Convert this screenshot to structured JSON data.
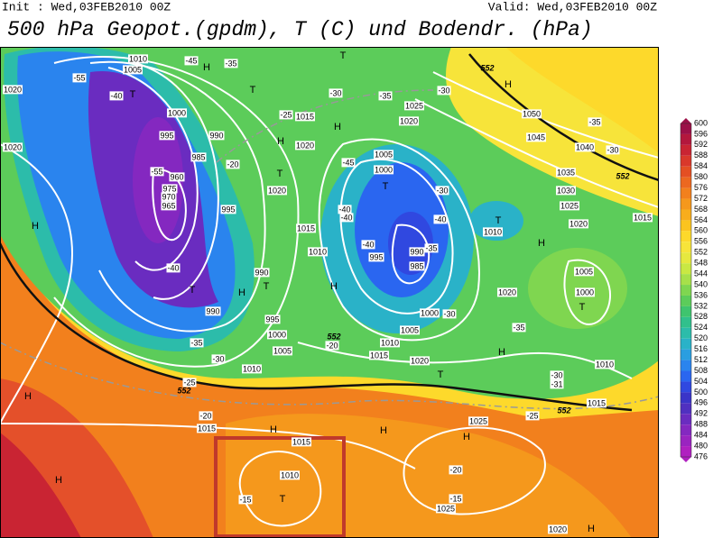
{
  "header": {
    "init": "Init : Wed,03FEB2010 00Z",
    "valid": "Valid: Wed,03FEB2010 00Z",
    "title": "500 hPa Geopot.(gpdm), T (C) und Bodendr. (hPa)"
  },
  "map": {
    "pressure_labels": [
      "1010",
      "1005",
      "1020",
      "1000",
      "995",
      "990",
      "985",
      "960",
      "975",
      "970",
      "965",
      "995",
      "1020",
      "1015",
      "1020",
      "1020",
      "1015",
      "1010",
      "990",
      "990",
      "995",
      "1000",
      "1005",
      "1010",
      "1015",
      "1025",
      "1020",
      "1005",
      "1000",
      "990",
      "985",
      "995",
      "1000",
      "1005",
      "1010",
      "1015",
      "1020",
      "1020",
      "1010",
      "1050",
      "1045",
      "1040",
      "1035",
      "1030",
      "1025",
      "1020",
      "1015",
      "1005",
      "1000",
      "1010",
      "1015",
      "1025",
      "1025",
      "1015",
      "1010",
      "1020"
    ],
    "temperature_labels": [
      "-55",
      "-40",
      "-45",
      "-35",
      "-30",
      "-35",
      "-30",
      "-25",
      "-20",
      "-55",
      "-45",
      "-40",
      "-40",
      "-30",
      "-40",
      "-40",
      "-35",
      "-40",
      "-35",
      "-30",
      "-25",
      "-20",
      "-20",
      "-30",
      "-35",
      "-30",
      "-31",
      "-35",
      "-30",
      "-25",
      "-20",
      "-15",
      "-15"
    ],
    "contour_labels": [
      "552",
      "552",
      "552",
      "552",
      "552"
    ],
    "centers": [
      "T",
      "H",
      "T",
      "T",
      "H",
      "H",
      "H",
      "T",
      "T",
      "T",
      "H",
      "H",
      "T",
      "H",
      "T",
      "H",
      "H",
      "T",
      "T",
      "H",
      "H",
      "H",
      "H",
      "H",
      "T",
      "H"
    ]
  },
  "colorbar": {
    "levels": [
      600,
      596,
      592,
      588,
      584,
      580,
      576,
      572,
      568,
      564,
      560,
      556,
      552,
      548,
      544,
      540,
      536,
      532,
      528,
      524,
      520,
      516,
      512,
      508,
      504,
      500,
      496,
      492,
      488,
      484,
      480,
      476
    ],
    "colors": [
      "#9b1048",
      "#b3173d",
      "#c92433",
      "#d9382b",
      "#e44f23",
      "#ec6820",
      "#f2801d",
      "#f5981c",
      "#f8ad1c",
      "#fbc41f",
      "#fdd92b",
      "#f7e43a",
      "#e6e83f",
      "#c9e843",
      "#a7e04a",
      "#7fd650",
      "#5ccc5a",
      "#3fc46e",
      "#31c08c",
      "#2cbcaa",
      "#2ab2c8",
      "#2a9ee0",
      "#2a84ee",
      "#2a66f0",
      "#3048e0",
      "#3a34c8",
      "#5030c0",
      "#6a2cc0",
      "#8428c0",
      "#9a24c0",
      "#b020c0"
    ]
  }
}
